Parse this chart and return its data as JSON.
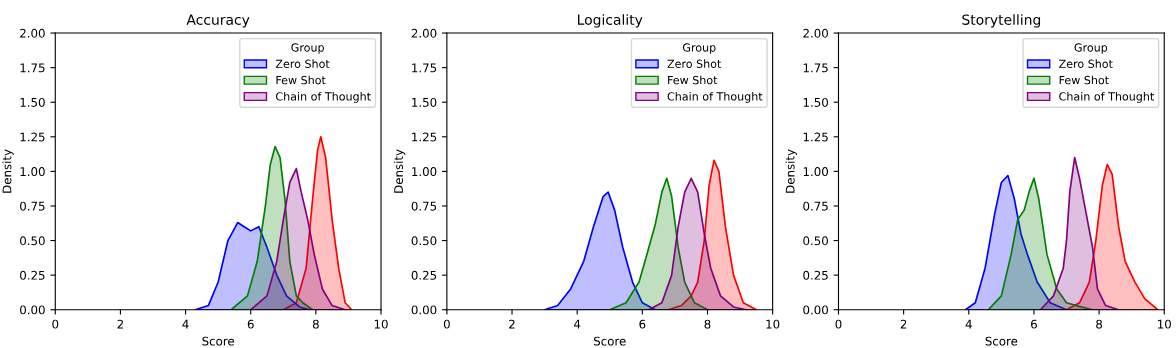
{
  "chart_data": [
    {
      "type": "area",
      "title": "Accuracy",
      "xlabel": "Score",
      "ylabel": "Density",
      "legend_title": "Group",
      "legend": "top right",
      "xlim": [
        0,
        10
      ],
      "xticks": [
        0,
        2,
        4,
        6,
        8,
        10
      ],
      "ylim": [
        0,
        2
      ],
      "yticks": [
        {
          "value": 0,
          "label": "0.00"
        },
        {
          "value": 0.25,
          "label": "0.25"
        },
        {
          "value": 0.5,
          "label": "0.50"
        },
        {
          "value": 0.75,
          "label": "0.75"
        },
        {
          "value": 1,
          "label": "1.00"
        },
        {
          "value": 1.25,
          "label": "1.25"
        },
        {
          "value": 1.5,
          "label": "1.50"
        },
        {
          "value": 1.75,
          "label": "1.75"
        },
        {
          "value": 2,
          "label": "2.00"
        }
      ],
      "grid": false,
      "series": [
        {
          "color": "#ff0000",
          "x": [
            7.0,
            7.4,
            7.7,
            7.9,
            8.05,
            8.15,
            8.3,
            8.5,
            8.7,
            8.9,
            9.1
          ],
          "values": [
            0,
            0.05,
            0.3,
            0.8,
            1.15,
            1.25,
            1.1,
            0.65,
            0.3,
            0.05,
            0
          ]
        },
        {
          "name": "Zero Shot",
          "color": "#0000ff",
          "x": [
            4.3,
            4.7,
            5.0,
            5.3,
            5.6,
            5.8,
            6.0,
            6.25,
            6.5,
            6.8,
            7.1,
            7.5,
            7.8
          ],
          "values": [
            0,
            0.03,
            0.2,
            0.5,
            0.63,
            0.6,
            0.57,
            0.6,
            0.45,
            0.25,
            0.1,
            0.02,
            0
          ]
        },
        {
          "name": "Few Shot",
          "color": "#008000",
          "x": [
            5.4,
            5.9,
            6.2,
            6.45,
            6.6,
            6.75,
            6.9,
            7.05,
            7.2,
            7.4,
            7.6,
            7.9
          ],
          "values": [
            0,
            0.1,
            0.35,
            0.75,
            1.05,
            1.18,
            1.1,
            0.8,
            0.35,
            0.1,
            0.05,
            0
          ]
        },
        {
          "name": "Chain of Thought",
          "color": "#800080",
          "x": [
            6.0,
            6.5,
            6.8,
            7.0,
            7.2,
            7.4,
            7.55,
            7.75,
            7.95,
            8.2,
            8.5,
            8.9
          ],
          "values": [
            0,
            0.1,
            0.35,
            0.65,
            0.92,
            1.02,
            0.85,
            0.65,
            0.4,
            0.15,
            0.03,
            0
          ]
        }
      ]
    },
    {
      "type": "area",
      "title": "Logicality",
      "xlabel": "Score",
      "ylabel": "Density",
      "legend_title": "Group",
      "legend": "top right",
      "xlim": [
        0,
        10
      ],
      "xticks": [
        0,
        2,
        4,
        6,
        8,
        10
      ],
      "ylim": [
        0,
        2
      ],
      "yticks": [
        {
          "value": 0,
          "label": "0.00"
        },
        {
          "value": 0.25,
          "label": "0.25"
        },
        {
          "value": 0.5,
          "label": "0.50"
        },
        {
          "value": 0.75,
          "label": "0.75"
        },
        {
          "value": 1,
          "label": "1.00"
        },
        {
          "value": 1.25,
          "label": "1.25"
        },
        {
          "value": 1.5,
          "label": "1.50"
        },
        {
          "value": 1.75,
          "label": "1.75"
        },
        {
          "value": 2,
          "label": "2.00"
        }
      ],
      "grid": false,
      "series": [
        {
          "color": "#ff0000",
          "x": [
            6.8,
            7.2,
            7.5,
            7.7,
            7.9,
            8.05,
            8.2,
            8.35,
            8.55,
            8.8,
            9.1,
            9.5
          ],
          "values": [
            0,
            0.03,
            0.1,
            0.2,
            0.5,
            0.9,
            1.08,
            1.0,
            0.6,
            0.25,
            0.05,
            0
          ]
        },
        {
          "name": "Zero Shot",
          "color": "#0000ff",
          "x": [
            3.0,
            3.4,
            3.8,
            4.2,
            4.5,
            4.8,
            4.95,
            5.15,
            5.4,
            5.7,
            6.0,
            6.4
          ],
          "values": [
            0,
            0.03,
            0.15,
            0.35,
            0.6,
            0.82,
            0.85,
            0.72,
            0.45,
            0.2,
            0.05,
            0
          ]
        },
        {
          "name": "Few Shot",
          "color": "#008000",
          "x": [
            5.0,
            5.5,
            5.9,
            6.2,
            6.4,
            6.6,
            6.75,
            6.9,
            7.1,
            7.3,
            7.6,
            8.0
          ],
          "values": [
            0,
            0.05,
            0.2,
            0.45,
            0.62,
            0.85,
            0.95,
            0.82,
            0.45,
            0.2,
            0.05,
            0
          ]
        },
        {
          "name": "Chain of Thought",
          "color": "#800080",
          "x": [
            6.2,
            6.6,
            6.9,
            7.1,
            7.3,
            7.5,
            7.7,
            7.9,
            8.1,
            8.4,
            8.8,
            9.2
          ],
          "values": [
            0,
            0.05,
            0.25,
            0.6,
            0.85,
            0.95,
            0.85,
            0.55,
            0.3,
            0.1,
            0.02,
            0
          ]
        }
      ]
    },
    {
      "type": "area",
      "title": "Storytelling",
      "xlabel": "Score",
      "ylabel": "Density",
      "legend_title": "Group",
      "legend": "top right",
      "xlim": [
        0,
        10
      ],
      "xticks": [
        0,
        2,
        4,
        6,
        8,
        10
      ],
      "ylim": [
        0,
        2
      ],
      "yticks": [
        {
          "value": 0,
          "label": "0.00"
        },
        {
          "value": 0.25,
          "label": "0.25"
        },
        {
          "value": 0.5,
          "label": "0.50"
        },
        {
          "value": 0.75,
          "label": "0.75"
        },
        {
          "value": 1,
          "label": "1.00"
        },
        {
          "value": 1.25,
          "label": "1.25"
        },
        {
          "value": 1.5,
          "label": "1.50"
        },
        {
          "value": 1.75,
          "label": "1.75"
        },
        {
          "value": 2,
          "label": "2.00"
        }
      ],
      "grid": false,
      "series": [
        {
          "color": "#ff0000",
          "x": [
            7.0,
            7.4,
            7.7,
            7.9,
            8.1,
            8.25,
            8.4,
            8.6,
            8.8,
            9.1,
            9.4,
            9.8
          ],
          "values": [
            0,
            0.05,
            0.2,
            0.5,
            0.9,
            1.05,
            0.98,
            0.6,
            0.35,
            0.2,
            0.08,
            0
          ]
        },
        {
          "name": "Zero Shot",
          "color": "#0000ff",
          "x": [
            3.9,
            4.2,
            4.5,
            4.8,
            5.0,
            5.2,
            5.4,
            5.6,
            5.8,
            6.1,
            6.5,
            7.0
          ],
          "values": [
            0,
            0.05,
            0.3,
            0.7,
            0.92,
            0.97,
            0.8,
            0.55,
            0.4,
            0.2,
            0.05,
            0
          ]
        },
        {
          "name": "Few Shot",
          "color": "#008000",
          "x": [
            4.6,
            5.0,
            5.3,
            5.5,
            5.7,
            5.85,
            6.0,
            6.15,
            6.4,
            6.7,
            7.0,
            7.3,
            7.8
          ],
          "values": [
            0,
            0.1,
            0.4,
            0.65,
            0.72,
            0.85,
            0.95,
            0.8,
            0.4,
            0.15,
            0.05,
            0.03,
            0
          ]
        },
        {
          "name": "Chain of Thought",
          "color": "#800080",
          "x": [
            6.2,
            6.6,
            6.9,
            7.0,
            7.1,
            7.25,
            7.4,
            7.6,
            7.8,
            7.95,
            8.2,
            8.6
          ],
          "values": [
            0,
            0.1,
            0.3,
            0.5,
            0.85,
            1.1,
            0.95,
            0.7,
            0.45,
            0.15,
            0.03,
            0
          ]
        }
      ]
    }
  ]
}
